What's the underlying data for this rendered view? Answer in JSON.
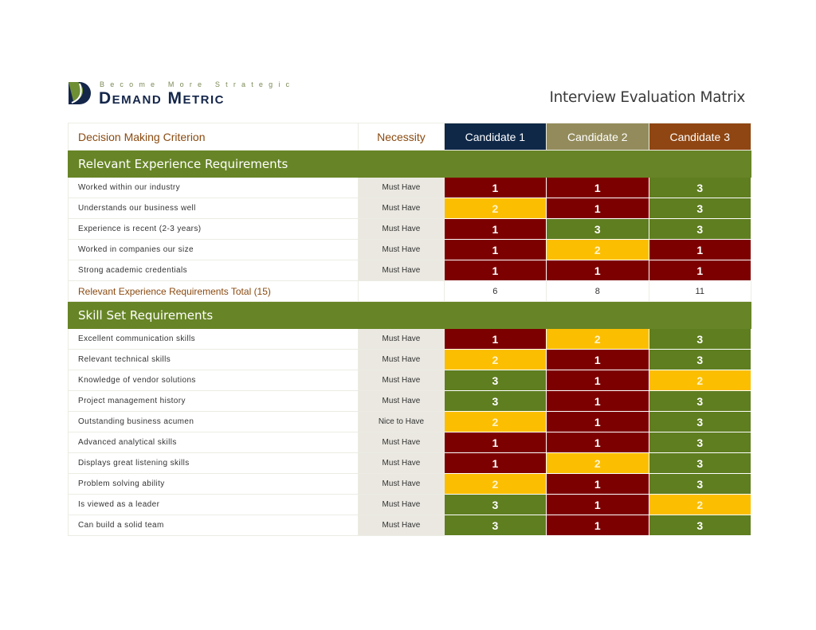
{
  "logo": {
    "tagline": "Become More Strategic",
    "brand": "Demand Metric"
  },
  "title": "Interview Evaluation Matrix",
  "header": {
    "criterion": "Decision Making Criterion",
    "necessity": "Necessity",
    "candidates": [
      {
        "label": "Candidate 1",
        "color": "#0f2848"
      },
      {
        "label": "Candidate 2",
        "color": "#938b5b"
      },
      {
        "label": "Candidate 3",
        "color": "#8f4612"
      }
    ]
  },
  "score_colors": {
    "1": "#7d0000",
    "2": "#fcbe00",
    "3": "#5f7e20"
  },
  "sections": [
    {
      "title": "Relevant Experience Requirements",
      "rows": [
        {
          "criterion": "Worked within our industry",
          "necessity": "Must Have",
          "scores": [
            "1",
            "1",
            "3"
          ]
        },
        {
          "criterion": "Understands our business well",
          "necessity": "Must Have",
          "scores": [
            "2",
            "1",
            "3"
          ]
        },
        {
          "criterion": "Experience is recent (2-3 years)",
          "necessity": "Must Have",
          "scores": [
            "1",
            "3",
            "3"
          ]
        },
        {
          "criterion": "Worked in companies our size",
          "necessity": "Must Have",
          "scores": [
            "1",
            "2",
            "1"
          ]
        },
        {
          "criterion": "Strong academic credentials",
          "necessity": "Must Have",
          "scores": [
            "1",
            "1",
            "1"
          ]
        }
      ],
      "total": {
        "label": "Relevant Experience Requirements Total (15)",
        "values": [
          "6",
          "8",
          "11"
        ]
      }
    },
    {
      "title": "Skill Set Requirements",
      "rows": [
        {
          "criterion": "Excellent communication skills",
          "necessity": "Must Have",
          "scores": [
            "1",
            "2",
            "3"
          ]
        },
        {
          "criterion": "Relevant technical skills",
          "necessity": "Must Have",
          "scores": [
            "2",
            "1",
            "3"
          ]
        },
        {
          "criterion": "Knowledge of vendor solutions",
          "necessity": "Must Have",
          "scores": [
            "3",
            "1",
            "2"
          ]
        },
        {
          "criterion": "Project management history",
          "necessity": "Must Have",
          "scores": [
            "3",
            "1",
            "3"
          ]
        },
        {
          "criterion": "Outstanding business acumen",
          "necessity": "Nice to Have",
          "scores": [
            "2",
            "1",
            "3"
          ]
        },
        {
          "criterion": "Advanced analytical skills",
          "necessity": "Must Have",
          "scores": [
            "1",
            "1",
            "3"
          ]
        },
        {
          "criterion": "Displays great listening skills",
          "necessity": "Must Have",
          "scores": [
            "1",
            "2",
            "3"
          ]
        },
        {
          "criterion": "Problem solving ability",
          "necessity": "Must Have",
          "scores": [
            "2",
            "1",
            "3"
          ]
        },
        {
          "criterion": "Is viewed as a leader",
          "necessity": "Must Have",
          "scores": [
            "3",
            "1",
            "2"
          ]
        },
        {
          "criterion": "Can build a solid team",
          "necessity": "Must Have",
          "scores": [
            "3",
            "1",
            "3"
          ]
        }
      ]
    }
  ]
}
